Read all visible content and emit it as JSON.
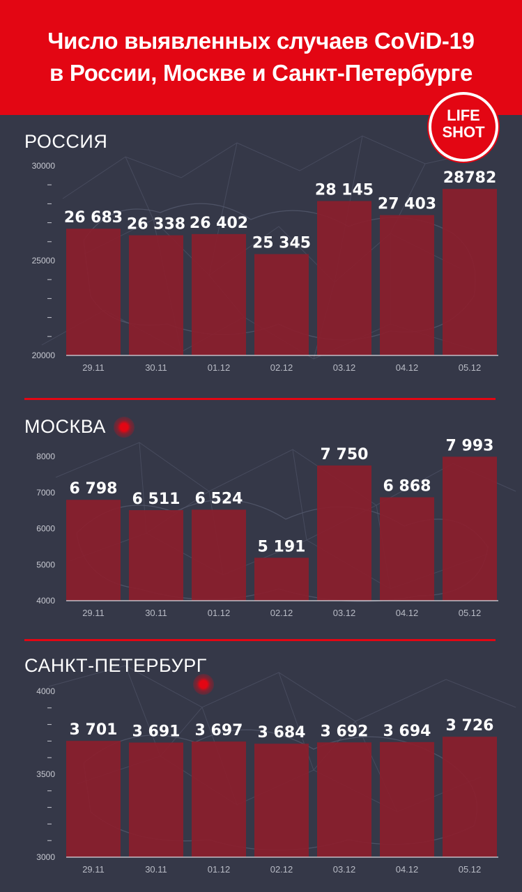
{
  "header": {
    "title_line1": "Число выявленных случаев CoViD-19",
    "title_line2": "в России, Москве и Санкт-Петербурге"
  },
  "logo": {
    "line1": "LIFE",
    "line2": "SHOT"
  },
  "colors": {
    "header": "#e30613",
    "background": "#353848",
    "bar": "#8b1e2c",
    "divider": "#e30613"
  },
  "chart_data": [
    {
      "type": "bar",
      "title": "РОССИЯ",
      "categories": [
        "29.11",
        "30.11",
        "01.12",
        "02.12",
        "03.12",
        "04.12",
        "05.12"
      ],
      "values": [
        26683,
        26338,
        26402,
        25345,
        28145,
        27403,
        28782
      ],
      "value_labels": [
        "26 683",
        "26 338",
        "26 402",
        "25 345",
        "28 145",
        "27 403",
        "28782"
      ],
      "ylim": [
        20000,
        30000
      ],
      "yticks": [
        20000,
        25000,
        30000
      ],
      "yticks_labels": [
        "20000",
        "25000",
        "30000"
      ],
      "minor_ticks": 4
    },
    {
      "type": "bar",
      "title": "МОСКВА",
      "categories": [
        "29.11",
        "30.11",
        "01.12",
        "02.12",
        "03.12",
        "04.12",
        "05.12"
      ],
      "values": [
        6798,
        6511,
        6524,
        5191,
        7750,
        6868,
        7993
      ],
      "value_labels": [
        "6 798",
        "6 511",
        "6 524",
        "5 191",
        "7 750",
        "6 868",
        "7 993"
      ],
      "ylim": [
        4000,
        8000
      ],
      "yticks": [
        4000,
        5000,
        6000,
        7000,
        8000
      ],
      "yticks_labels": [
        "4000",
        "5000",
        "6000",
        "7000",
        "8000"
      ],
      "minor_ticks": 0
    },
    {
      "type": "bar",
      "title": "САНКТ-ПЕТЕРБУРГ",
      "categories": [
        "29.11",
        "30.11",
        "01.12",
        "02.12",
        "03.12",
        "04.12",
        "05.12"
      ],
      "values": [
        3701,
        3691,
        3697,
        3684,
        3692,
        3694,
        3726
      ],
      "value_labels": [
        "3 701",
        "3 691",
        "3 697",
        "3 684",
        "3 692",
        "3 694",
        "3 726"
      ],
      "ylim": [
        3000,
        4000
      ],
      "yticks": [
        3000,
        3500,
        4000
      ],
      "yticks_labels": [
        "3000",
        "3500",
        "4000"
      ],
      "minor_ticks": 4
    }
  ]
}
